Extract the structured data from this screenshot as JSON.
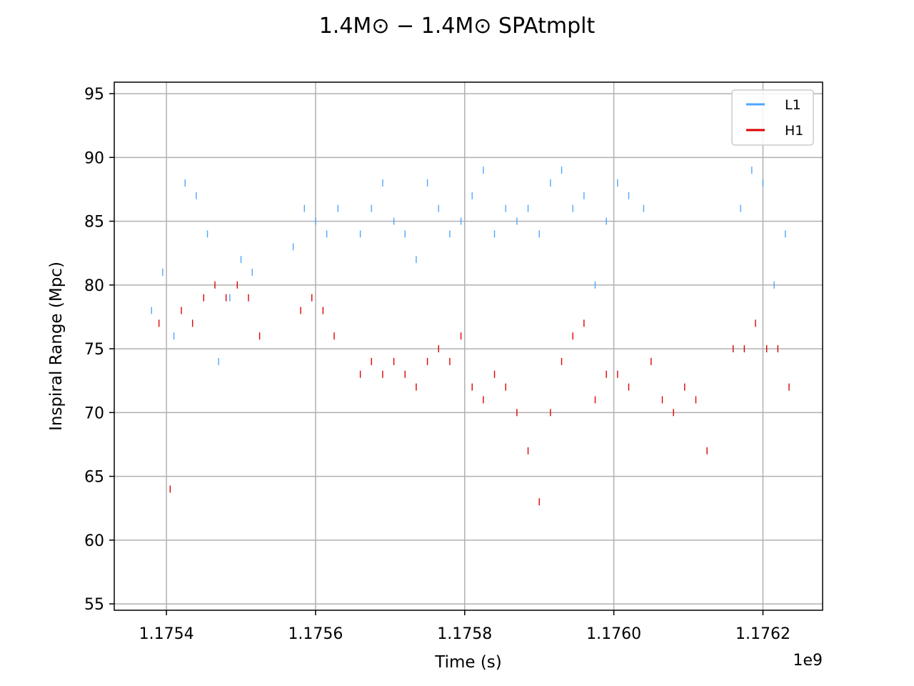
{
  "chart_data": {
    "type": "scatter",
    "title": "1.4M⊙ − 1.4M⊙ SPAtmplt",
    "xlabel": "Time (s)",
    "ylabel": "Inspiral Range (Mpc)",
    "x_offset_label": "1e9",
    "xlim": [
      1.17533,
      1.17628
    ],
    "ylim": [
      54.5,
      95.9
    ],
    "xticks": [
      1.1754,
      1.1756,
      1.1758,
      1.176,
      1.1762
    ],
    "xtick_labels": [
      "1.1754",
      "1.1756",
      "1.1758",
      "1.1760",
      "1.1762"
    ],
    "yticks": [
      55,
      60,
      65,
      70,
      75,
      80,
      85,
      90,
      95
    ],
    "ytick_labels": [
      "55",
      "60",
      "65",
      "70",
      "75",
      "80",
      "85",
      "90",
      "95"
    ],
    "grid": true,
    "legend_position": "top-right",
    "marker": "short vertical dashes",
    "series": [
      {
        "name": "L1",
        "color": "#4da6ff",
        "x": [
          1.17538,
          1.175395,
          1.17541,
          1.175425,
          1.17544,
          1.175455,
          1.17547,
          1.175485,
          1.1755,
          1.175515,
          1.17557,
          1.175585,
          1.1756,
          1.175615,
          1.17563,
          1.17566,
          1.175675,
          1.17569,
          1.175705,
          1.17572,
          1.175735,
          1.17575,
          1.175765,
          1.17578,
          1.175795,
          1.17581,
          1.175825,
          1.17584,
          1.175855,
          1.17587,
          1.175885,
          1.1759,
          1.175915,
          1.17593,
          1.175945,
          1.17596,
          1.175975,
          1.17599,
          1.176005,
          1.17602,
          1.17604,
          1.17617,
          1.176185,
          1.1762,
          1.176215,
          1.17623
        ],
        "y": [
          78,
          81,
          76,
          88,
          87,
          84,
          74,
          79,
          82,
          81,
          83,
          86,
          85,
          84,
          86,
          84,
          86,
          88,
          85,
          84,
          82,
          88,
          86,
          84,
          85,
          87,
          89,
          84,
          86,
          85,
          86,
          84,
          88,
          89,
          86,
          87,
          80,
          85,
          88,
          87,
          86,
          86,
          89,
          88,
          80,
          84
        ]
      },
      {
        "name": "H1",
        "color": "#dd0000",
        "x": [
          1.17539,
          1.175405,
          1.17542,
          1.175435,
          1.17545,
          1.175465,
          1.17548,
          1.175495,
          1.17551,
          1.175525,
          1.17558,
          1.175595,
          1.17561,
          1.175625,
          1.17566,
          1.175675,
          1.17569,
          1.175705,
          1.17572,
          1.175735,
          1.17575,
          1.175765,
          1.17578,
          1.175795,
          1.17581,
          1.175825,
          1.17584,
          1.175855,
          1.17587,
          1.175885,
          1.1759,
          1.175915,
          1.17593,
          1.175945,
          1.17596,
          1.175975,
          1.17599,
          1.176005,
          1.17602,
          1.17605,
          1.176065,
          1.17608,
          1.176095,
          1.17611,
          1.176125,
          1.17616,
          1.176175,
          1.17619,
          1.176205,
          1.17622,
          1.176235
        ],
        "y": [
          77,
          64,
          78,
          77,
          79,
          80,
          79,
          80,
          79,
          76,
          78,
          79,
          78,
          76,
          73,
          74,
          73,
          74,
          73,
          72,
          74,
          75,
          74,
          76,
          72,
          71,
          73,
          72,
          70,
          67,
          63,
          70,
          74,
          76,
          77,
          71,
          73,
          73,
          72,
          74,
          71,
          70,
          72,
          71,
          67,
          75,
          75,
          77,
          75,
          75,
          72
        ]
      }
    ]
  }
}
